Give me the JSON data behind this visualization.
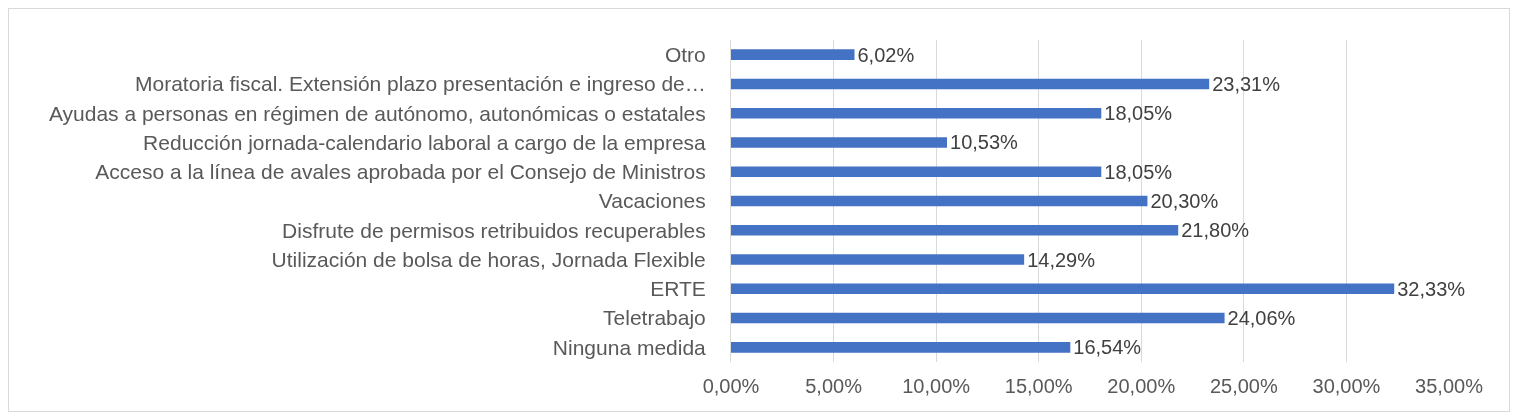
{
  "chart_data": {
    "type": "bar",
    "orientation": "horizontal",
    "categories": [
      "Otro",
      "Moratoria fiscal. Extensión plazo presentación e ingreso de…",
      "Ayudas a personas en régimen de autónomo, autonómicas o estatales",
      "Reducción jornada-calendario laboral a cargo de la empresa",
      "Acceso a la línea de avales aprobada por el Consejo de Ministros",
      "Vacaciones",
      "Disfrute de permisos retribuidos recuperables",
      "Utilización de bolsa de horas, Jornada Flexible",
      "ERTE",
      "Teletrabajo",
      "Ninguna medida"
    ],
    "values": [
      6.02,
      23.31,
      18.05,
      10.53,
      18.05,
      20.3,
      21.8,
      14.29,
      32.33,
      24.06,
      16.54
    ],
    "value_labels": [
      "6,02%",
      "23,31%",
      "18,05%",
      "10,53%",
      "18,05%",
      "20,30%",
      "21,80%",
      "14,29%",
      "32,33%",
      "24,06%",
      "16,54%"
    ],
    "color": "#4472c4",
    "xlim": [
      0,
      35
    ],
    "xticks": [
      {
        "value": 0,
        "label": "0,00%"
      },
      {
        "value": 5,
        "label": "5,00%"
      },
      {
        "value": 10,
        "label": "10,00%"
      },
      {
        "value": 15,
        "label": "15,00%"
      },
      {
        "value": 20,
        "label": "20,00%"
      },
      {
        "value": 25,
        "label": "25,00%"
      },
      {
        "value": 30,
        "label": "30,00%"
      },
      {
        "value": 35,
        "label": "35,00%"
      }
    ],
    "grid": "x"
  }
}
